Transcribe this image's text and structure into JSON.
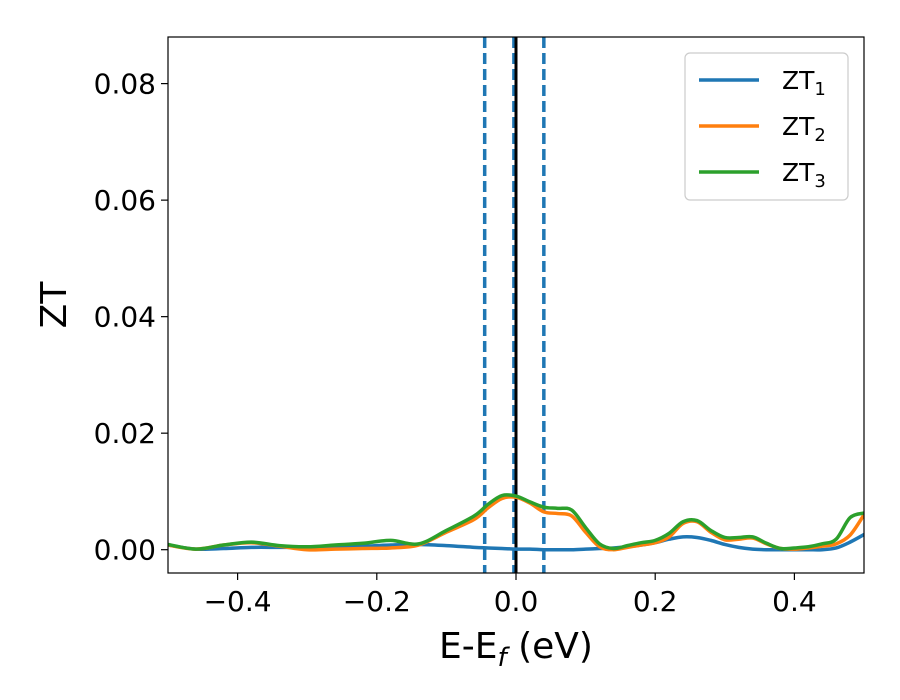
{
  "chart_data": {
    "type": "line",
    "xlabel": "E-E_f (eV)",
    "xlabel_parts": {
      "main": "E-E",
      "sub": "f",
      "unit": " (eV)"
    },
    "ylabel": "ZT",
    "xlim": [
      -0.5,
      0.5
    ],
    "ylim": [
      -0.004,
      0.088
    ],
    "x_ticks": [
      -0.4,
      -0.2,
      0.0,
      0.2,
      0.4
    ],
    "x_tick_labels": [
      "−0.4",
      "−0.2",
      "0.0",
      "0.2",
      "0.4"
    ],
    "y_ticks": [
      0.0,
      0.02,
      0.04,
      0.06,
      0.08
    ],
    "y_tick_labels": [
      "0.00",
      "0.02",
      "0.04",
      "0.06",
      "0.08"
    ],
    "grid": false,
    "legend_position": "top-right",
    "vlines": [
      {
        "x": -0.045,
        "style": "dashed",
        "color": "#1f77b4"
      },
      {
        "x": -0.003,
        "style": "dashed",
        "color": "#1f77b4"
      },
      {
        "x": 0.0,
        "style": "solid",
        "color": "#000000"
      },
      {
        "x": 0.04,
        "style": "dashed",
        "color": "#1f77b4"
      }
    ],
    "x": [
      -0.5,
      -0.46,
      -0.42,
      -0.38,
      -0.34,
      -0.3,
      -0.26,
      -0.22,
      -0.18,
      -0.14,
      -0.1,
      -0.06,
      -0.04,
      -0.02,
      0.0,
      0.02,
      0.04,
      0.06,
      0.08,
      0.1,
      0.12,
      0.14,
      0.16,
      0.18,
      0.2,
      0.22,
      0.24,
      0.26,
      0.28,
      0.3,
      0.32,
      0.34,
      0.36,
      0.38,
      0.4,
      0.42,
      0.44,
      0.46,
      0.48,
      0.5
    ],
    "series": [
      {
        "name": "ZT",
        "sub": "1",
        "color": "#1f77b4",
        "values": [
          0.0008,
          0.0001,
          0.0002,
          0.0004,
          0.0004,
          0.0004,
          0.0005,
          0.0006,
          0.0008,
          0.0009,
          0.0007,
          0.0004,
          0.0003,
          0.0002,
          0.0001,
          0.0001,
          0.0,
          0.0,
          0.0,
          0.0001,
          0.0002,
          0.0003,
          0.0005,
          0.0008,
          0.0012,
          0.0018,
          0.0022,
          0.0021,
          0.0016,
          0.0009,
          0.0004,
          0.0001,
          0.0,
          0.0,
          0.0,
          0.0,
          0.0,
          0.0003,
          0.0013,
          0.0026
        ]
      },
      {
        "name": "ZT",
        "sub": "2",
        "color": "#ff7f0e",
        "values": [
          0.0008,
          0.0001,
          0.0008,
          0.0012,
          0.0006,
          0.0,
          0.0001,
          0.0002,
          0.0003,
          0.0008,
          0.003,
          0.0052,
          0.0072,
          0.0088,
          0.009,
          0.008,
          0.0065,
          0.0062,
          0.0058,
          0.003,
          0.0005,
          0.0,
          0.0004,
          0.0008,
          0.0012,
          0.0022,
          0.0045,
          0.0048,
          0.003,
          0.0017,
          0.0018,
          0.002,
          0.001,
          0.0002,
          0.0001,
          0.0003,
          0.0006,
          0.001,
          0.0025,
          0.006
        ]
      },
      {
        "name": "ZT",
        "sub": "3",
        "color": "#2ca02c",
        "values": [
          0.0009,
          0.0001,
          0.0008,
          0.0013,
          0.0007,
          0.0005,
          0.0008,
          0.0011,
          0.0016,
          0.001,
          0.0033,
          0.0058,
          0.0078,
          0.0093,
          0.0092,
          0.0082,
          0.0073,
          0.0071,
          0.0068,
          0.0038,
          0.001,
          0.0002,
          0.0007,
          0.0012,
          0.0016,
          0.0028,
          0.0048,
          0.005,
          0.0033,
          0.0021,
          0.0021,
          0.0022,
          0.0011,
          0.0002,
          0.0003,
          0.0005,
          0.001,
          0.0018,
          0.0055,
          0.0063
        ]
      }
    ]
  }
}
